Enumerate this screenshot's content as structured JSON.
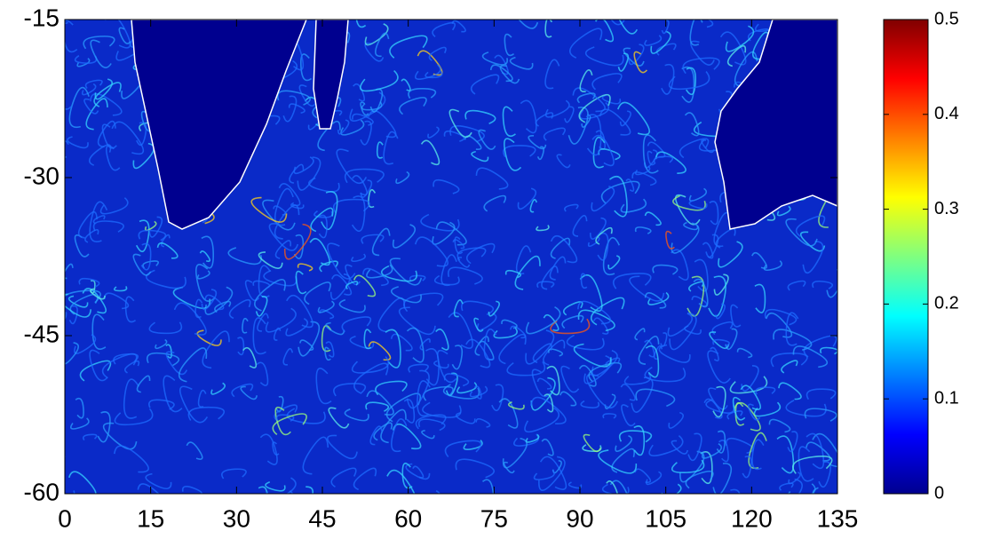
{
  "chart_data": {
    "type": "heatmap",
    "colormap": "jet",
    "xlim": [
      0,
      135
    ],
    "xticks": [
      0,
      15,
      30,
      45,
      60,
      75,
      90,
      105,
      120,
      135
    ],
    "ylim": [
      -60,
      -15
    ],
    "yticks": [
      -60,
      -45,
      -30,
      -15
    ],
    "colorbar": {
      "lim": [
        0,
        0.5
      ],
      "ticks": [
        0,
        0.1,
        0.2,
        0.3,
        0.4,
        0.5
      ]
    }
  }
}
